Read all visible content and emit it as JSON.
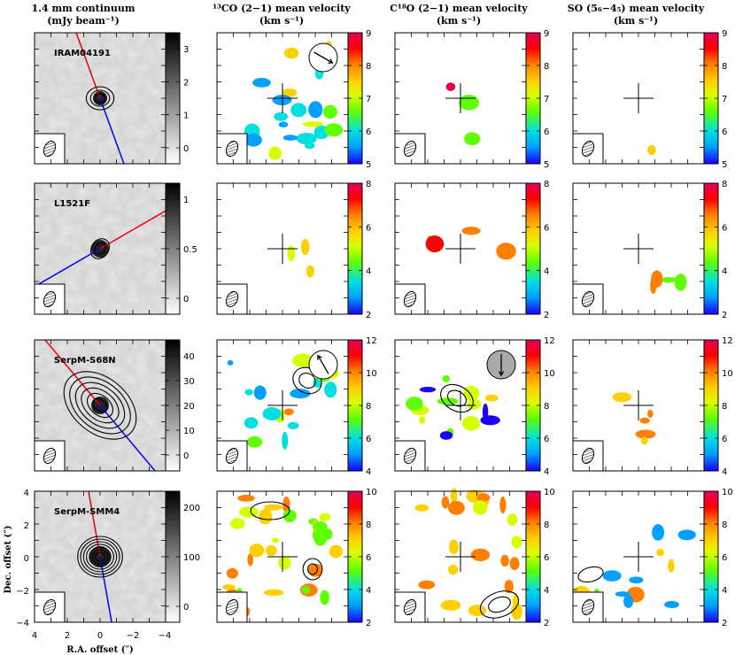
{
  "column_titles": [
    {
      "line1": "1.4 mm continuum",
      "line2": "(mJy beam⁻¹)"
    },
    {
      "line1": "¹³CO (2−1) mean velocity",
      "line2": "(km s⁻¹)"
    },
    {
      "line1": "C¹⁸O (2−1) mean velocity",
      "line2": "(km s⁻¹)"
    },
    {
      "line1": "SO (5₆−4₅) mean velocity",
      "line2": "(km s⁻¹)"
    }
  ],
  "axis_labels": {
    "x": "R.A. offset (″)",
    "y": "Dec. offset (″)"
  },
  "axis_ticks": {
    "x": [
      "4",
      "2",
      "0",
      "−2",
      "−4"
    ],
    "y": [
      "4",
      "2",
      "0",
      "−2",
      "−4"
    ]
  },
  "colors": {
    "outflow_red": "#e8000b",
    "outflow_blue": "#0000ff",
    "velocity_colormap": [
      "#1a00ff",
      "#00a0ff",
      "#00e0e0",
      "#60ff00",
      "#d8ff00",
      "#ffd000",
      "#ff8000",
      "#ff0000",
      "#e0005a"
    ]
  },
  "chart_data": [
    {
      "source": "IRAM04191",
      "cont_colorbar": [
        "0",
        "1",
        "2",
        "3"
      ],
      "cont_range": [
        -0.6,
        3.6
      ],
      "vel_colorbar": [
        "5",
        "6",
        "7",
        "8",
        "9"
      ],
      "vel_range": [
        5,
        9
      ],
      "outflow_pa_deg": 20
    },
    {
      "source": "L1521F",
      "cont_colorbar": [
        "0",
        "0.5",
        "1"
      ],
      "cont_range": [
        -0.3,
        1.2
      ],
      "vel_colorbar": [
        "2",
        "4",
        "6",
        "8"
      ],
      "vel_range": [
        2,
        8
      ],
      "outflow_pa_deg": -60
    },
    {
      "source": "SerpM-S68N",
      "cont_colorbar": [
        "0",
        "10",
        "20",
        "30",
        "40"
      ],
      "cont_range": [
        -5,
        42
      ],
      "vel_colorbar": [
        "4",
        "6",
        "8",
        "10",
        "12"
      ],
      "vel_range": [
        4,
        12
      ],
      "outflow_pa_deg": 40
    },
    {
      "source": "SerpM-SMM4",
      "cont_colorbar": [
        "0",
        "100",
        "200"
      ],
      "cont_range": [
        -10,
        290
      ],
      "vel_colorbar": [
        "2",
        "4",
        "6",
        "8",
        "10"
      ],
      "vel_range": [
        2,
        10
      ],
      "outflow_pa_deg": 10
    }
  ]
}
